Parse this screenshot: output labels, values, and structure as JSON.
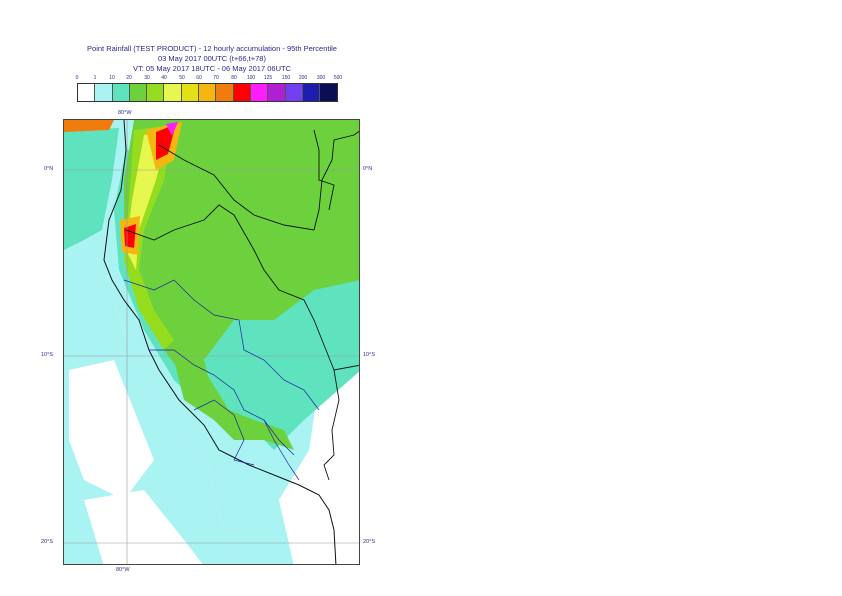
{
  "header": {
    "line1": "Point Rainfall (TEST PRODUCT) - 12 hourly accumulation - 95th Percentile",
    "line2": "03 May 2017 00UTC (t+66,t+78)",
    "line3": "VT: 05 May 2017 18UTC - 06 May 2017 06UTC"
  },
  "legend": {
    "labels": [
      "0",
      "1",
      "10",
      "20",
      "30",
      "40",
      "50",
      "60",
      "70",
      "80",
      "100",
      "125",
      "150",
      "200",
      "300",
      "500"
    ],
    "colors": [
      "#ffffff",
      "#aaf3f3",
      "#5fe3bf",
      "#6cd13c",
      "#96dc1e",
      "#e6f750",
      "#e3e018",
      "#f5b70f",
      "#f07c0d",
      "#ff0000",
      "#ff1cff",
      "#b11fd5",
      "#7240f0",
      "#1d1db0",
      "#0d0d55"
    ]
  },
  "map": {
    "lon_top": "80°W",
    "lon_bottom": "80°W",
    "lat_labels": [
      {
        "left": "0°N",
        "right": "0°N"
      },
      {
        "left": "10°S",
        "right": "10°S"
      },
      {
        "left": "20°S",
        "right": "20°S"
      }
    ]
  }
}
